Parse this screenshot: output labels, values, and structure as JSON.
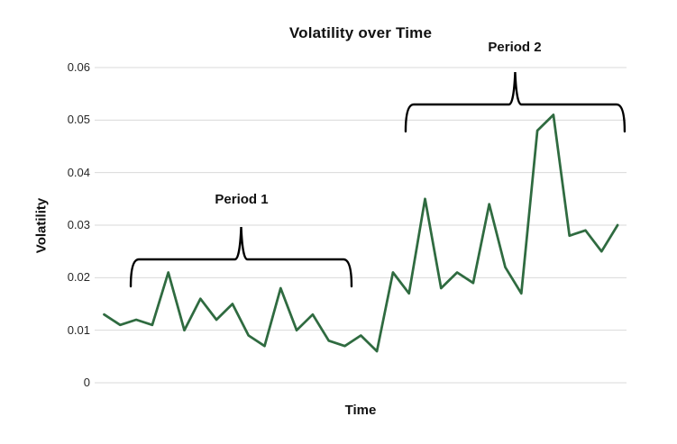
{
  "chart_data": {
    "type": "line",
    "title": "Volatility over Time",
    "xlabel": "Time",
    "ylabel": "Volatility",
    "ylim": [
      0,
      0.06
    ],
    "y_ticks": [
      "0",
      "0.01",
      "0.02",
      "0.03",
      "0.04",
      "0.05",
      "0.06"
    ],
    "x_tick_labels_visible": false,
    "grid": "horizontal",
    "legend": "none",
    "line_color": "#2f6b40",
    "gridline_color": "#d9d9d9",
    "annotation_color": "#000000",
    "values": [
      0.013,
      0.011,
      0.012,
      0.011,
      0.021,
      0.01,
      0.016,
      0.012,
      0.015,
      0.009,
      0.007,
      0.018,
      0.01,
      0.013,
      0.008,
      0.007,
      0.009,
      0.006,
      0.021,
      0.017,
      0.035,
      0.018,
      0.021,
      0.019,
      0.034,
      0.022,
      0.017,
      0.048,
      0.051,
      0.028,
      0.029,
      0.025,
      0.03
    ],
    "annotations": [
      {
        "label": "Period 1",
        "covers_point_range": [
          3,
          16
        ]
      },
      {
        "label": "Period 2",
        "covers_point_range": [
          20,
          33
        ]
      }
    ]
  }
}
